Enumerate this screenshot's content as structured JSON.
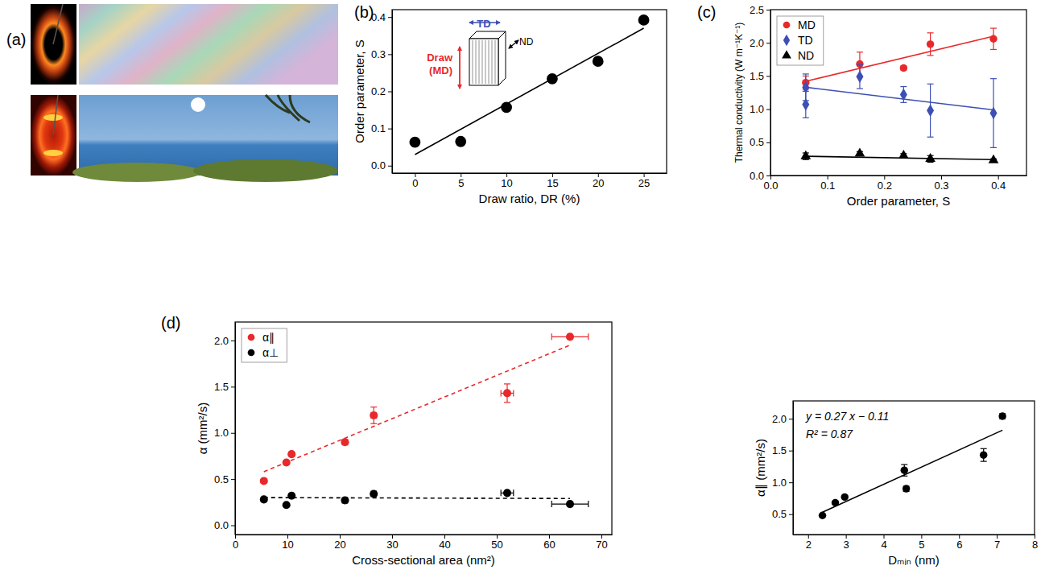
{
  "chart_data": [
    {
      "type": "image",
      "panel": "(a)"
    },
    {
      "type": "scatter",
      "panel": "(b)",
      "x_label": "Draw ratio, DR (%)",
      "y_label": "Order parameter, S",
      "annotations": [
        "TD",
        "ND",
        "Draw",
        "(MD)"
      ],
      "xlim": [
        -2.5,
        27.5
      ],
      "xticks": [
        0,
        5,
        10,
        15,
        20,
        25
      ],
      "ylim": [
        -0.02,
        0.42
      ],
      "yticks": [
        {
          "value": 0,
          "label": "0.0"
        },
        0.1,
        0.2,
        0.3,
        0.4
      ],
      "series": [
        {
          "x": [
            0,
            5,
            10,
            15,
            20,
            25
          ],
          "values": [
            0.063,
            0.065,
            0.157,
            0.234,
            0.281,
            0.392
          ],
          "color": "#000000",
          "marker": "circle"
        },
        {
          "type": "line",
          "x": [
            0,
            25
          ],
          "values": [
            0.03,
            0.37
          ],
          "color": "#000000",
          "line_style": "solid"
        }
      ]
    },
    {
      "type": "scatter",
      "panel": "(c)",
      "x_label": "Order parameter, S",
      "y_label": "Thermal conductivity (W m⁻¹K⁻¹)",
      "xlim": [
        0,
        0.45
      ],
      "xticks": [
        {
          "value": 0,
          "label": "0.0"
        },
        0.1,
        0.2,
        0.3,
        0.4
      ],
      "ylim": [
        0,
        2.5
      ],
      "yticks": [
        {
          "value": 0,
          "label": "0.0"
        },
        0.5,
        {
          "value": 1,
          "label": "1.0"
        },
        1.5,
        {
          "value": 2,
          "label": "2.0"
        },
        2.5
      ],
      "legend": "upper left",
      "series": [
        {
          "name": "MD",
          "color": "#e8292b",
          "marker": "circle",
          "x": [
            0.062,
            0.157,
            0.234,
            0.281,
            0.392
          ],
          "values": [
            1.4,
            1.68,
            1.62,
            1.98,
            2.06
          ],
          "errors": [
            0.1,
            0.18,
            0.03,
            0.17,
            0.16
          ]
        },
        {
          "name": "TD",
          "color": "#3d4fb5",
          "marker": "diamond",
          "x": [
            0.062,
            0.062,
            0.157,
            0.234,
            0.281,
            0.392
          ],
          "values": [
            1.33,
            1.07,
            1.49,
            1.22,
            0.98,
            0.94
          ],
          "errors": [
            0.2,
            0.2,
            0.18,
            0.12,
            0.4,
            0.52
          ]
        },
        {
          "name": "ND",
          "color": "#000000",
          "marker": "triangle",
          "x": [
            0.062,
            0.157,
            0.234,
            0.281,
            0.392
          ],
          "values": [
            0.29,
            0.33,
            0.3,
            0.25,
            0.23
          ],
          "errors": [
            0.05,
            0.03,
            0.03,
            0.05,
            0.02
          ]
        },
        {
          "type": "line",
          "color": "#e8292b",
          "line_style": "solid",
          "x": [
            0.062,
            0.392
          ],
          "values": [
            1.42,
            2.1
          ]
        },
        {
          "type": "line",
          "color": "#3d4fb5",
          "line_style": "solid",
          "x": [
            0.062,
            0.392
          ],
          "values": [
            1.33,
            0.99
          ]
        },
        {
          "type": "line",
          "color": "#000000",
          "line_style": "solid",
          "x": [
            0.062,
            0.392
          ],
          "values": [
            0.29,
            0.24
          ]
        }
      ]
    },
    {
      "type": "scatter",
      "panel": "(d)",
      "x_label": "Cross-sectional area (nm²)",
      "y_label": "α (mm²/s)",
      "xlim": [
        0,
        72
      ],
      "xticks": [
        0,
        10,
        20,
        30,
        40,
        50,
        60,
        70
      ],
      "ylim": [
        -0.1,
        2.2
      ],
      "yticks": [
        {
          "value": 0,
          "label": "0.0"
        },
        0.5,
        {
          "value": 1,
          "label": "1.0"
        },
        1.5,
        {
          "value": 2,
          "label": "2.0"
        }
      ],
      "legend": "upper left",
      "series": [
        {
          "name": "α∥",
          "color": "#e8292b",
          "marker": "circle",
          "x": [
            5.5,
            9.8,
            10.8,
            21,
            26.5,
            52,
            64
          ],
          "values": [
            0.48,
            0.68,
            0.77,
            0.9,
            1.19,
            1.43,
            2.04
          ],
          "errors": [
            0.02,
            0.02,
            0.02,
            0.02,
            0.09,
            0.1,
            0.02
          ],
          "x_errors": [
            0.3,
            0.3,
            0.3,
            0.5,
            0.5,
            1.2,
            3.5
          ]
        },
        {
          "name": "α⊥",
          "color": "#000000",
          "marker": "circle",
          "x": [
            5.5,
            9.8,
            10.8,
            21,
            26.5,
            52,
            64
          ],
          "values": [
            0.28,
            0.22,
            0.32,
            0.27,
            0.34,
            0.35,
            0.23
          ],
          "x_errors": [
            0.3,
            0.3,
            0.3,
            0.5,
            0.5,
            1.2,
            3.5
          ]
        },
        {
          "type": "line",
          "color": "#e8292b",
          "line_style": "dashed",
          "x": [
            5.5,
            64
          ],
          "values": [
            0.58,
            1.95
          ]
        },
        {
          "type": "line",
          "color": "#000000",
          "line_style": "dashed",
          "x": [
            5.5,
            64
          ],
          "values": [
            0.3,
            0.29
          ]
        }
      ]
    },
    {
      "type": "scatter",
      "x_label": "Dₘᵢₙ (nm)",
      "y_label": "α∥ (mm²/s)",
      "annotations": [
        "y = 0.27 x − 0.11",
        "R² = 0.87"
      ],
      "xlim": [
        1.6,
        8
      ],
      "xticks": [
        2,
        3,
        4,
        5,
        6,
        7,
        8
      ],
      "ylim": [
        0.18,
        2.28
      ],
      "yticks": [
        0.5,
        {
          "value": 1,
          "label": "1.0"
        },
        1.5,
        {
          "value": 2,
          "label": "2.0"
        }
      ],
      "series": [
        {
          "color": "#000000",
          "marker": "circle",
          "x": [
            2.38,
            2.72,
            2.97,
            4.55,
            4.6,
            6.65,
            7.15
          ],
          "values": [
            0.48,
            0.68,
            0.77,
            1.19,
            0.9,
            1.43,
            2.04
          ],
          "errors": [
            0.02,
            0.02,
            0.02,
            0.09,
            0.04,
            0.1,
            0.04
          ]
        },
        {
          "type": "line",
          "color": "#000000",
          "line_style": "solid",
          "x": [
            2.38,
            7.15
          ],
          "values": [
            0.53,
            1.82
          ]
        }
      ]
    }
  ]
}
